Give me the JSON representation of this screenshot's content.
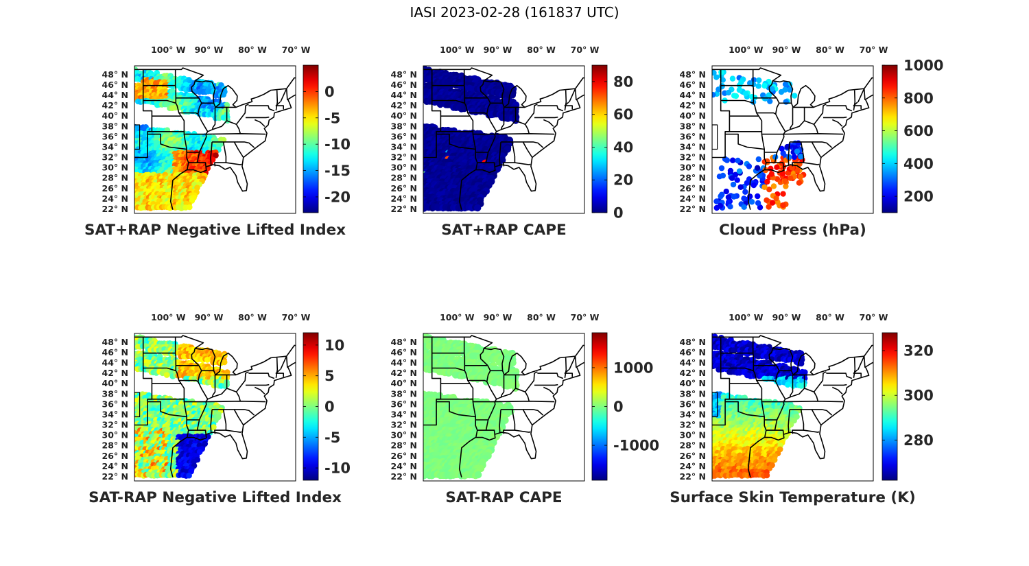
{
  "title": "IASI 2023-02-28 (161837 UTC)",
  "lon_labels": [
    "100° W",
    "90° W",
    "80° W",
    "70° W"
  ],
  "lat_labels": [
    "48° N",
    "46° N",
    "44° N",
    "42° N",
    "40° N",
    "38° N",
    "36° N",
    "34° N",
    "32° N",
    "30° N",
    "28° N",
    "26° N",
    "24° N",
    "22° N"
  ],
  "panels": [
    {
      "id": "sat-rap-plus-nli",
      "title": "SAT+RAP Negative Lifted Index",
      "colorbar": {
        "min": -23,
        "max": 5,
        "ticks": [
          -20,
          -15,
          -10,
          -5,
          0
        ],
        "tick_labels": [
          "-20",
          "-15",
          "-10",
          "-5",
          "0"
        ]
      },
      "field": "nli_plus"
    },
    {
      "id": "sat-rap-plus-cape",
      "title": "SAT+RAP CAPE",
      "colorbar": {
        "min": 0,
        "max": 90,
        "ticks": [
          0,
          20,
          40,
          60,
          80
        ],
        "tick_labels": [
          "0",
          "20",
          "40",
          "60",
          "80"
        ]
      },
      "field": "cape_plus"
    },
    {
      "id": "cloud-press",
      "title": "Cloud Press (hPa)",
      "colorbar": {
        "min": 100,
        "max": 1000,
        "ticks": [
          200,
          400,
          600,
          800,
          1000
        ],
        "tick_labels": [
          "200",
          "400",
          "600",
          "800",
          "1000"
        ]
      },
      "field": "cloud"
    },
    {
      "id": "sat-rap-minus-nli",
      "title": "SAT-RAP Negative Lifted Index",
      "colorbar": {
        "min": -12,
        "max": 12,
        "ticks": [
          -10,
          -5,
          0,
          5,
          10
        ],
        "tick_labels": [
          "-10",
          "-5",
          "0",
          "5",
          "10"
        ]
      },
      "field": "nli_minus"
    },
    {
      "id": "sat-rap-minus-cape",
      "title": "SAT-RAP CAPE",
      "colorbar": {
        "min": -1900,
        "max": 1900,
        "ticks": [
          -1000,
          0,
          1000
        ],
        "tick_labels": [
          "-1000",
          "0",
          "1000"
        ]
      },
      "field": "cape_minus"
    },
    {
      "id": "skin-temp",
      "title": "Surface Skin Temperature (K)",
      "colorbar": {
        "min": 262,
        "max": 328,
        "ticks": [
          280,
          300,
          320
        ],
        "tick_labels": [
          "280",
          "300",
          "320"
        ]
      },
      "field": "skin"
    }
  ]
}
